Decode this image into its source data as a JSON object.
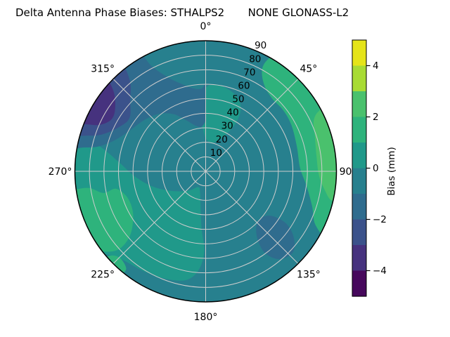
{
  "title": "Delta Antenna Phase Biases: STHALPS2       NONE GLONASS-L2",
  "chart_data": {
    "type": "heatmap",
    "subtype": "polar-contour",
    "title": "Delta Antenna Phase Biases: STHALPS2       NONE GLONASS-L2",
    "azimuth_labels": [
      {
        "label": "0°",
        "az": 0
      },
      {
        "label": "45°",
        "az": 45
      },
      {
        "label": "90",
        "az": 90
      },
      {
        "label": "135°",
        "az": 135
      },
      {
        "label": "180°",
        "az": 180
      },
      {
        "label": "225°",
        "az": 225
      },
      {
        "label": "270°",
        "az": 270
      },
      {
        "label": "315°",
        "az": 315
      }
    ],
    "radial_tick_labels": [
      "10",
      "20",
      "30",
      "40",
      "50",
      "60",
      "70",
      "80",
      "90"
    ],
    "radial_tick_values": [
      10,
      20,
      30,
      40,
      50,
      60,
      70,
      80,
      90
    ],
    "radial_label_angle_deg": 22.5,
    "grid": {
      "on": true,
      "color": "#cdcdcd",
      "circle_step": 10,
      "spoke_step": 45,
      "outer_stroke": "#000000"
    },
    "base_region": {
      "name": "background-bias",
      "band": [
        -1,
        0
      ],
      "color": "#27808e"
    },
    "regions": [
      {
        "name": "west-positive-area",
        "band": [
          0,
          1
        ],
        "color": "#20998a",
        "points": [
          [
            233,
            95
          ],
          [
            243,
            95
          ],
          [
            253,
            95
          ],
          [
            263,
            95
          ],
          [
            273,
            95
          ],
          [
            281,
            95
          ],
          [
            285,
            88
          ],
          [
            283,
            74
          ],
          [
            276,
            60
          ],
          [
            266,
            49
          ],
          [
            254,
            38
          ],
          [
            240,
            27
          ],
          [
            222,
            18
          ],
          [
            205,
            12
          ],
          [
            195,
            15
          ],
          [
            188,
            25
          ],
          [
            184,
            40
          ],
          [
            181,
            55
          ],
          [
            184,
            68
          ],
          [
            190,
            76
          ],
          [
            200,
            79
          ],
          [
            212,
            81
          ],
          [
            224,
            84
          ],
          [
            230,
            89
          ]
        ]
      },
      {
        "name": "north-center-positive",
        "band": [
          0,
          1
        ],
        "color": "#20998a",
        "points": [
          [
            353,
            40
          ],
          [
            356,
            30
          ],
          [
            0,
            23
          ],
          [
            10,
            20
          ],
          [
            20,
            22
          ],
          [
            28,
            28
          ],
          [
            32,
            38
          ],
          [
            30,
            48
          ],
          [
            24,
            55
          ],
          [
            14,
            59
          ],
          [
            4,
            60
          ],
          [
            356,
            54
          ],
          [
            352,
            47
          ]
        ]
      },
      {
        "name": "northeast-green-band",
        "band": [
          1,
          2
        ],
        "color": "#2eb37c",
        "points": [
          [
            32,
            95
          ],
          [
            45,
            95
          ],
          [
            60,
            95
          ],
          [
            75,
            95
          ],
          [
            90,
            95
          ],
          [
            105,
            95
          ],
          [
            118,
            95
          ],
          [
            116,
            84
          ],
          [
            108,
            77
          ],
          [
            98,
            70
          ],
          [
            88,
            65
          ],
          [
            75,
            65
          ],
          [
            62,
            67
          ],
          [
            52,
            68
          ],
          [
            42,
            68
          ],
          [
            34,
            72
          ],
          [
            29,
            80
          ],
          [
            29,
            88
          ]
        ]
      },
      {
        "name": "east-bright-green-strip",
        "band": [
          2,
          3
        ],
        "color": "#4ac16d",
        "points": [
          [
            63,
            95
          ],
          [
            75,
            95
          ],
          [
            88,
            95
          ],
          [
            100,
            95
          ],
          [
            103,
            89
          ],
          [
            99,
            83
          ],
          [
            92,
            78
          ],
          [
            82,
            77
          ],
          [
            72,
            79
          ],
          [
            65,
            82
          ],
          [
            62,
            88
          ]
        ]
      },
      {
        "name": "southwest-green-patch",
        "band": [
          1,
          2
        ],
        "color": "#2eb37c",
        "points": [
          [
            236,
            95
          ],
          [
            245,
            95
          ],
          [
            255,
            95
          ],
          [
            261,
            95
          ],
          [
            262,
            82
          ],
          [
            258,
            72
          ],
          [
            259,
            63
          ],
          [
            252,
            57
          ],
          [
            242,
            57
          ],
          [
            234,
            62
          ],
          [
            229,
            70
          ],
          [
            228,
            80
          ],
          [
            231,
            88
          ]
        ]
      },
      {
        "name": "southwest-green-small",
        "band": [
          1,
          2
        ],
        "color": "#2eb37c",
        "points": [
          [
            221,
            95
          ],
          [
            228,
            95
          ],
          [
            229,
            89
          ],
          [
            225,
            84
          ],
          [
            219,
            87
          ]
        ]
      },
      {
        "name": "northwest-blue-band",
        "band": [
          -2,
          -1
        ],
        "color": "#2f6c8e",
        "points": [
          [
            280,
            95
          ],
          [
            290,
            95
          ],
          [
            300,
            95
          ],
          [
            310,
            95
          ],
          [
            320,
            95
          ],
          [
            330,
            95
          ],
          [
            333,
            81
          ],
          [
            338,
            70
          ],
          [
            344,
            63
          ],
          [
            351,
            58
          ],
          [
            357,
            57
          ],
          [
            0,
            60
          ],
          [
            0,
            48
          ],
          [
            0,
            36
          ],
          [
            355,
            31
          ],
          [
            348,
            32
          ],
          [
            340,
            37
          ],
          [
            331,
            45
          ],
          [
            321,
            51
          ],
          [
            310,
            55
          ],
          [
            299,
            59
          ],
          [
            289,
            66
          ],
          [
            283,
            76
          ],
          [
            281,
            86
          ]
        ]
      },
      {
        "name": "northwest-darkblue-band",
        "band": [
          -3,
          -2
        ],
        "color": "#3b528b",
        "points": [
          [
            286,
            95
          ],
          [
            295,
            95
          ],
          [
            305,
            95
          ],
          [
            315,
            95
          ],
          [
            322,
            95
          ],
          [
            320,
            81
          ],
          [
            313,
            71
          ],
          [
            305,
            64
          ],
          [
            297,
            67
          ],
          [
            290,
            75
          ],
          [
            287,
            84
          ]
        ]
      },
      {
        "name": "northwest-indigo-patch",
        "band": [
          -4,
          -3
        ],
        "color": "#46327e",
        "points": [
          [
            291,
            95
          ],
          [
            298,
            95
          ],
          [
            306,
            95
          ],
          [
            313,
            95
          ],
          [
            311,
            84
          ],
          [
            305,
            76
          ],
          [
            299,
            74
          ],
          [
            294,
            79
          ],
          [
            292,
            86
          ]
        ]
      },
      {
        "name": "southeast-blue-patch",
        "band": [
          -2,
          -1
        ],
        "color": "#2f6c8e",
        "points": [
          [
            124,
            55
          ],
          [
            130,
            50
          ],
          [
            138,
            52
          ],
          [
            143,
            60
          ],
          [
            144,
            70
          ],
          [
            140,
            79
          ],
          [
            133,
            82
          ],
          [
            127,
            76
          ],
          [
            123,
            66
          ]
        ]
      }
    ],
    "colorbar": {
      "label": "Bias (mm)",
      "vmin": -5,
      "vmax": 5,
      "tick_values": [
        4,
        2,
        0,
        -2,
        -4
      ],
      "tick_labels": [
        "4",
        "2",
        "0",
        "−2",
        "−4"
      ],
      "band_colors_top_to_bottom": [
        "#e5e419",
        "#a8db34",
        "#4ac16d",
        "#2eb37c",
        "#20998a",
        "#27808e",
        "#2f6c8e",
        "#3b528b",
        "#46327e",
        "#46085c"
      ]
    }
  }
}
